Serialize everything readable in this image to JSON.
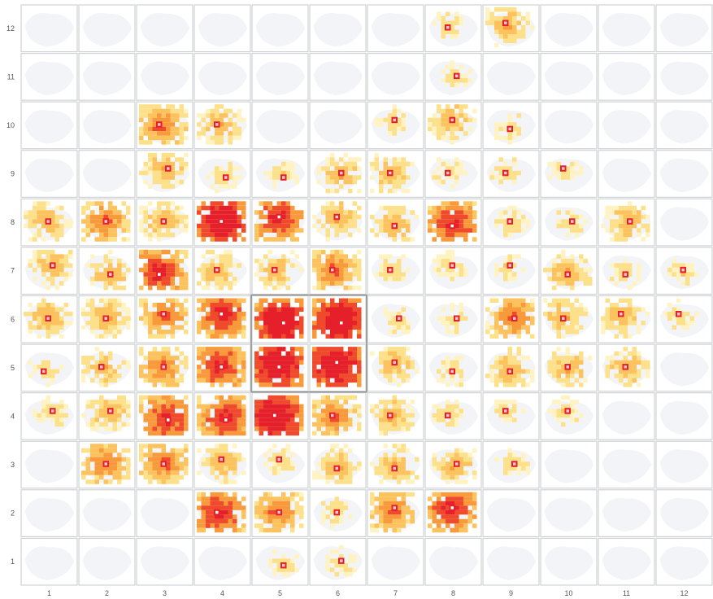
{
  "chart_data": {
    "type": "heatmap",
    "title": "",
    "xlabel": "",
    "ylabel": "",
    "x_ticks": [
      "1",
      "2",
      "3",
      "4",
      "5",
      "6",
      "7",
      "8",
      "9",
      "10",
      "11",
      "12"
    ],
    "y_ticks": [
      "1",
      "2",
      "3",
      "4",
      "5",
      "6",
      "7",
      "8",
      "9",
      "10",
      "11",
      "12"
    ],
    "grid": true,
    "colors": {
      "cell_background": "#f2f4f8",
      "cell_border": "#d0d2d6",
      "scale": [
        "#fff3c4",
        "#fde08a",
        "#fcc25e",
        "#f89a3c",
        "#ef4a2c",
        "#e6202b"
      ],
      "center_marker": "#f7c6ce",
      "selection_border": "#8a8a8a"
    },
    "selected_cells": [
      [
        5,
        5
      ],
      [
        6,
        5
      ],
      [
        5,
        6
      ],
      [
        6,
        6
      ]
    ],
    "intensity_legend": "0 = none, 1 = low (pale yellow) to 5 = high (red); per cell, a 0-5 intensity for the density blob shown",
    "cells": [
      {
        "col": 8,
        "row": 12,
        "intensity": 1
      },
      {
        "col": 9,
        "row": 12,
        "intensity": 2
      },
      {
        "col": 8,
        "row": 11,
        "intensity": 1
      },
      {
        "col": 3,
        "row": 10,
        "intensity": 3
      },
      {
        "col": 4,
        "row": 10,
        "intensity": 2
      },
      {
        "col": 7,
        "row": 10,
        "intensity": 1
      },
      {
        "col": 8,
        "row": 10,
        "intensity": 2
      },
      {
        "col": 9,
        "row": 10,
        "intensity": 1
      },
      {
        "col": 3,
        "row": 9,
        "intensity": 2
      },
      {
        "col": 4,
        "row": 9,
        "intensity": 1
      },
      {
        "col": 5,
        "row": 9,
        "intensity": 1
      },
      {
        "col": 6,
        "row": 9,
        "intensity": 2
      },
      {
        "col": 7,
        "row": 9,
        "intensity": 2
      },
      {
        "col": 8,
        "row": 9,
        "intensity": 1
      },
      {
        "col": 9,
        "row": 9,
        "intensity": 1
      },
      {
        "col": 10,
        "row": 9,
        "intensity": 1
      },
      {
        "col": 1,
        "row": 8,
        "intensity": 2
      },
      {
        "col": 2,
        "row": 8,
        "intensity": 3
      },
      {
        "col": 3,
        "row": 8,
        "intensity": 2
      },
      {
        "col": 4,
        "row": 8,
        "intensity": 5
      },
      {
        "col": 5,
        "row": 8,
        "intensity": 4
      },
      {
        "col": 6,
        "row": 8,
        "intensity": 2
      },
      {
        "col": 7,
        "row": 8,
        "intensity": 2
      },
      {
        "col": 8,
        "row": 8,
        "intensity": 4
      },
      {
        "col": 9,
        "row": 8,
        "intensity": 1
      },
      {
        "col": 10,
        "row": 8,
        "intensity": 1
      },
      {
        "col": 11,
        "row": 8,
        "intensity": 2
      },
      {
        "col": 1,
        "row": 7,
        "intensity": 2
      },
      {
        "col": 2,
        "row": 7,
        "intensity": 2
      },
      {
        "col": 3,
        "row": 7,
        "intensity": 4
      },
      {
        "col": 4,
        "row": 7,
        "intensity": 2
      },
      {
        "col": 5,
        "row": 7,
        "intensity": 2
      },
      {
        "col": 6,
        "row": 7,
        "intensity": 3
      },
      {
        "col": 7,
        "row": 7,
        "intensity": 1
      },
      {
        "col": 8,
        "row": 7,
        "intensity": 1
      },
      {
        "col": 9,
        "row": 7,
        "intensity": 1
      },
      {
        "col": 10,
        "row": 7,
        "intensity": 2
      },
      {
        "col": 11,
        "row": 7,
        "intensity": 1
      },
      {
        "col": 12,
        "row": 7,
        "intensity": 1
      },
      {
        "col": 1,
        "row": 6,
        "intensity": 2
      },
      {
        "col": 2,
        "row": 6,
        "intensity": 2
      },
      {
        "col": 3,
        "row": 6,
        "intensity": 3
      },
      {
        "col": 4,
        "row": 6,
        "intensity": 4
      },
      {
        "col": 5,
        "row": 6,
        "intensity": 5
      },
      {
        "col": 6,
        "row": 6,
        "intensity": 5
      },
      {
        "col": 7,
        "row": 6,
        "intensity": 1
      },
      {
        "col": 8,
        "row": 6,
        "intensity": 1
      },
      {
        "col": 9,
        "row": 6,
        "intensity": 3
      },
      {
        "col": 10,
        "row": 6,
        "intensity": 2
      },
      {
        "col": 11,
        "row": 6,
        "intensity": 2
      },
      {
        "col": 12,
        "row": 6,
        "intensity": 1
      },
      {
        "col": 1,
        "row": 5,
        "intensity": 1
      },
      {
        "col": 2,
        "row": 5,
        "intensity": 2
      },
      {
        "col": 3,
        "row": 5,
        "intensity": 3
      },
      {
        "col": 4,
        "row": 5,
        "intensity": 4
      },
      {
        "col": 5,
        "row": 5,
        "intensity": 5
      },
      {
        "col": 6,
        "row": 5,
        "intensity": 5
      },
      {
        "col": 7,
        "row": 5,
        "intensity": 2
      },
      {
        "col": 8,
        "row": 5,
        "intensity": 1
      },
      {
        "col": 9,
        "row": 5,
        "intensity": 2
      },
      {
        "col": 10,
        "row": 5,
        "intensity": 2
      },
      {
        "col": 11,
        "row": 5,
        "intensity": 2
      },
      {
        "col": 1,
        "row": 4,
        "intensity": 1
      },
      {
        "col": 2,
        "row": 4,
        "intensity": 2
      },
      {
        "col": 3,
        "row": 4,
        "intensity": 4
      },
      {
        "col": 4,
        "row": 4,
        "intensity": 4
      },
      {
        "col": 5,
        "row": 4,
        "intensity": 5
      },
      {
        "col": 6,
        "row": 4,
        "intensity": 3
      },
      {
        "col": 7,
        "row": 4,
        "intensity": 2
      },
      {
        "col": 8,
        "row": 4,
        "intensity": 1
      },
      {
        "col": 9,
        "row": 4,
        "intensity": 1
      },
      {
        "col": 10,
        "row": 4,
        "intensity": 1
      },
      {
        "col": 2,
        "row": 3,
        "intensity": 3
      },
      {
        "col": 3,
        "row": 3,
        "intensity": 3
      },
      {
        "col": 4,
        "row": 3,
        "intensity": 2
      },
      {
        "col": 5,
        "row": 3,
        "intensity": 1
      },
      {
        "col": 6,
        "row": 3,
        "intensity": 2
      },
      {
        "col": 7,
        "row": 3,
        "intensity": 2
      },
      {
        "col": 8,
        "row": 3,
        "intensity": 2
      },
      {
        "col": 9,
        "row": 3,
        "intensity": 1
      },
      {
        "col": 4,
        "row": 2,
        "intensity": 4
      },
      {
        "col": 5,
        "row": 2,
        "intensity": 3
      },
      {
        "col": 6,
        "row": 2,
        "intensity": 1
      },
      {
        "col": 7,
        "row": 2,
        "intensity": 3
      },
      {
        "col": 8,
        "row": 2,
        "intensity": 4
      },
      {
        "col": 5,
        "row": 1,
        "intensity": 1
      },
      {
        "col": 6,
        "row": 1,
        "intensity": 1
      }
    ]
  }
}
